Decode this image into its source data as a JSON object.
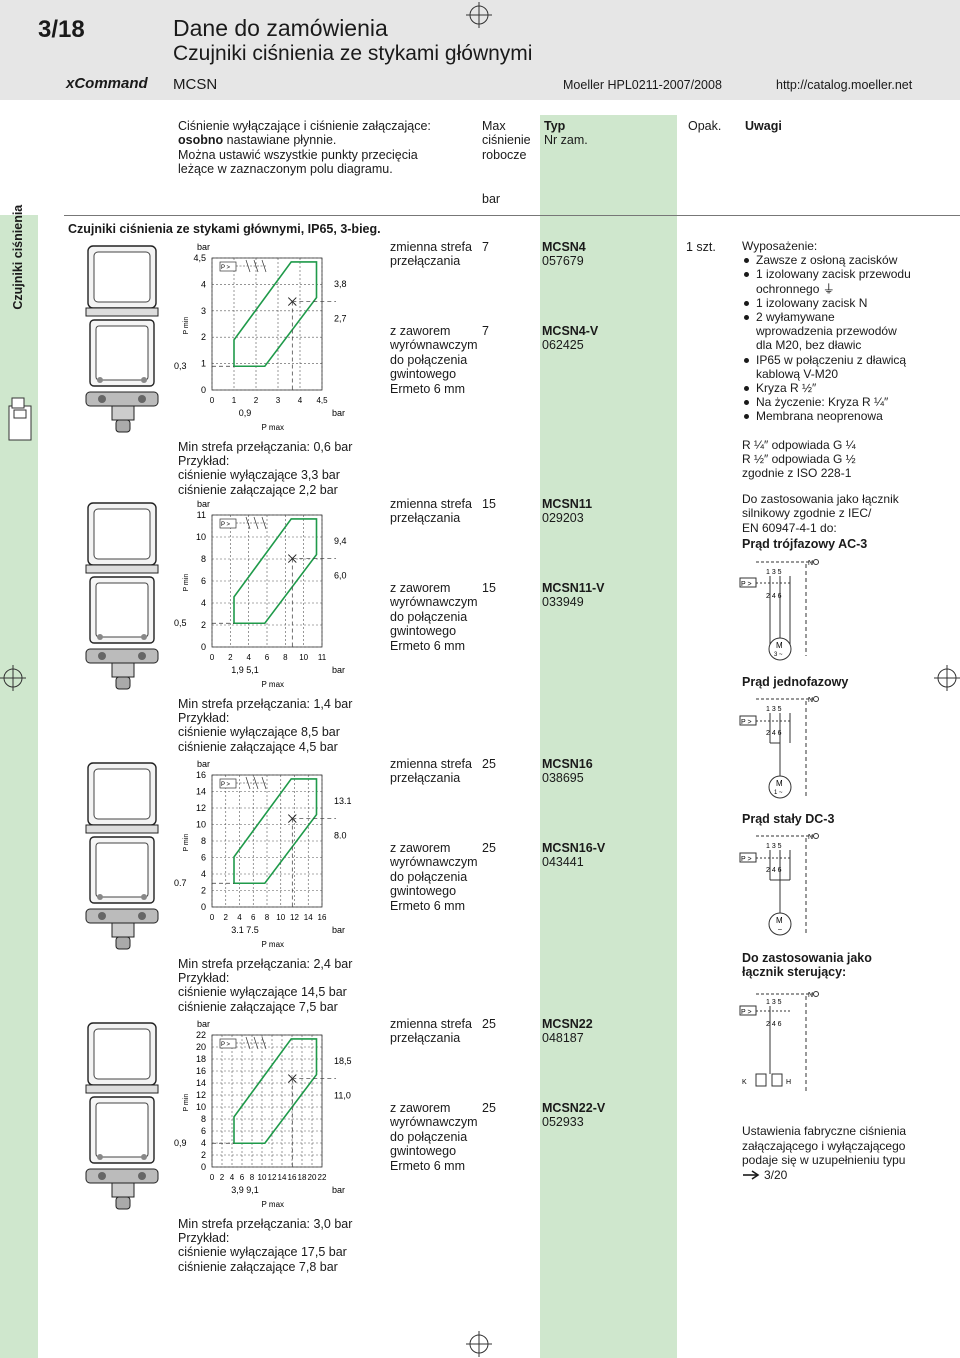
{
  "header": {
    "page_number": "3/18",
    "title": "Dane do zamówienia",
    "subtitle": "Czujniki ciśnienia ze stykami głównymi",
    "brand": "xCommand",
    "product": "MCSN",
    "catalog": "Moeller HPL0211-2007/2008",
    "url": "http://catalog.moeller.net"
  },
  "side_tab": "Czujniki ciśnienia",
  "intro": {
    "line1": "Ciśnienie wyłączające i ciśnienie załączające:",
    "line2_bold": "osobno",
    "line2_rest": " nastawiane płynnie.",
    "line3": "Można ustawić wszystkie punkty przecięcia",
    "line4": "leżące w zaznaczonym polu diagramu."
  },
  "columns": {
    "max": "Max",
    "pressure": "ciśnienie",
    "working": "robocze",
    "typ": "Typ",
    "nr": "Nr zam.",
    "opak": "Opak.",
    "uwagi": "Uwagi",
    "unit": "bar"
  },
  "section_title": "Czujniki ciśnienia ze stykami głównymi, IP65, 3-bieg.",
  "variants": [
    {
      "strefa_a": "zmienna strefa przełączania",
      "max_a": "7",
      "typ_a": "MCSN4",
      "nr_a": "057679",
      "opak": "1 szt.",
      "strefa_b": "z zaworem wyrównawczym do połączenia gwintowego Ermeto 6 mm",
      "max_b": "7",
      "typ_b": "MCSN4-V",
      "nr_b": "062425"
    },
    {
      "strefa_a": "zmienna strefa przełączania",
      "max_a": "15",
      "typ_a": "MCSN11",
      "nr_a": "029203",
      "strefa_b": "z zaworem wyrównawczym do połączenia gwintowego Ermeto 6 mm",
      "max_b": "15",
      "typ_b": "MCSN11-V",
      "nr_b": "033949"
    },
    {
      "strefa_a": "zmienna strefa przełączania",
      "max_a": "25",
      "typ_a": "MCSN16",
      "nr_a": "038695",
      "strefa_b": "z zaworem wyrównawczym do połączenia gwintowego Ermeto 6 mm",
      "max_b": "25",
      "typ_b": "MCSN16-V",
      "nr_b": "043441"
    },
    {
      "strefa_a": "zmienna strefa przełączania",
      "max_a": "25",
      "typ_a": "MCSN22",
      "nr_a": "048187",
      "strefa_b": "z zaworem wyrównawczym do połączenia gwintowego Ermeto 6 mm",
      "max_b": "25",
      "typ_b": "MCSN22-V",
      "nr_b": "052933"
    }
  ],
  "diagrams": [
    {
      "ylabels": [
        "bar",
        "4,5",
        "4",
        "3",
        "2",
        "1",
        "0"
      ],
      "pmin_val": "0,3",
      "xlabels": [
        "0",
        "1",
        "2",
        "3",
        "4",
        "4,5"
      ],
      "xsub": "0,9",
      "right_top": "3,8",
      "right_bot": "2,7",
      "min_text": "Min strefa przełączania: 0,6 bar",
      "example": "Przykład:",
      "off": "ciśnienie wyłączające 3,3 bar",
      "on": "ciśnienie załączające 2,2 bar"
    },
    {
      "ylabels": [
        "bar",
        "11",
        "10",
        "8",
        "6",
        "4",
        "2",
        "0"
      ],
      "pmin_val": "0,5",
      "xlabels": [
        "0",
        "2",
        "4",
        "6",
        "8",
        "10",
        "11"
      ],
      "xsub": "1,9     5,1",
      "right_top": "9,4",
      "right_bot": "6,0",
      "min_text": "Min strefa przełączania: 1,4 bar",
      "example": "Przykład:",
      "off": "ciśnienie wyłączające 8,5 bar",
      "on": "ciśnienie załączające 4,5 bar"
    },
    {
      "ylabels": [
        "bar",
        "16",
        "14",
        "12",
        "10",
        "8",
        "6",
        "4",
        "2",
        "0"
      ],
      "pmin_val": "0.7",
      "xlabels": [
        "0",
        "2",
        "4",
        "6",
        "8",
        "10",
        "12",
        "14",
        "16"
      ],
      "xsub": "3.1      7.5",
      "right_top": "13.1",
      "right_bot": "8.0",
      "min_text": "Min strefa przełączania: 2,4 bar",
      "example": "Przykład:",
      "off": "ciśnienie wyłączające 14,5 bar",
      "on": "ciśnienie załączające 7,5 bar"
    },
    {
      "ylabels": [
        "bar",
        "22",
        "20",
        "18",
        "16",
        "14",
        "12",
        "10",
        "8",
        "6",
        "4",
        "2",
        "0"
      ],
      "pmin_val": "0,9",
      "xlabels": [
        "0",
        "2",
        "4",
        "6",
        "8",
        "10",
        "12",
        "14",
        "16",
        "18",
        "20",
        "22"
      ],
      "xsub": "3,9      9,1",
      "right_top": "18,5",
      "right_bot": "11,0",
      "min_text": "Min strefa przełączania: 3,0 bar",
      "example": "Przykład:",
      "off": "ciśnienie wyłączające 17,5 bar",
      "on": "ciśnienie załączające 7,8 bar"
    }
  ],
  "axis": {
    "pmin": "P min",
    "pmax": "P max",
    "bar": "bar"
  },
  "uwagi": {
    "equip_title": "Wyposażenie:",
    "equip": [
      "Zawsze z osłoną zacisków",
      "1 izolowany zacisk przewodu ochronnego ⏚",
      "1 izolowany zacisk N",
      "2 wyłamywane wprowadzenia przewodów dla M20, bez dławic",
      "IP65 w połączeniu z dławicą kablową V-M20",
      "Kryza R ½″",
      "Na życzenie: Kryza R ¼″",
      "Membrana neoprenowa"
    ],
    "r14": "R ¼″ odpowiada G ¼",
    "r12": "R ½″ odpowiada G ½",
    "iso": "zgodnie z ISO 228-1",
    "usage1": "Do zastosowania jako łącznik",
    "usage2": "silnikowy zgodnie z IEC/",
    "usage3": "EN 60947-4-1 do:",
    "ac3": "Prąd trójfazowy AC-3",
    "single": "Prąd jednofazowy",
    "dc3": "Prąd stały DC-3",
    "control": "Do zastosowania jako łącznik sterujący:",
    "factory1": "Ustawienia fabryczne ciśnienia",
    "factory2": "załączającego i wyłączającego",
    "factory3": "podaje się w uzupełnieniu typu",
    "ref": "3/20"
  },
  "circuit": {
    "p": "P >",
    "m": "M",
    "m3": "3 ~",
    "m1": "1 ~",
    "mdc": "–",
    "n": "N",
    "k": "K",
    "h": "H",
    "t135": "1 3 5",
    "t246": "2 4 6"
  }
}
